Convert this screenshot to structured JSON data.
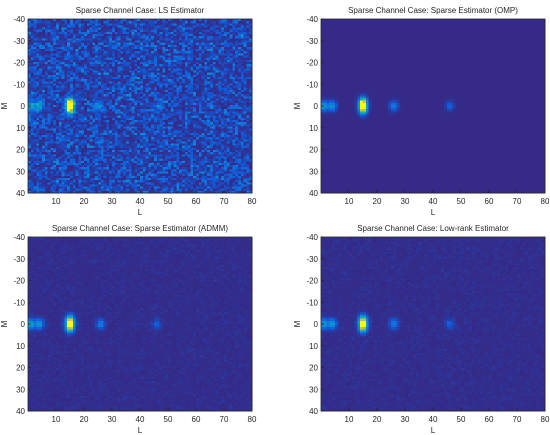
{
  "chart_data": [
    {
      "type": "heatmap",
      "title": "Sparse Channel Case: LS Estimator",
      "xlabel": "L",
      "ylabel": "M",
      "xlim": [
        0,
        80
      ],
      "ylim": [
        -40,
        40
      ],
      "y_direction": "reversed",
      "xticks": [
        "10",
        "20",
        "30",
        "40",
        "50",
        "60",
        "70",
        "80"
      ],
      "yticks": [
        "-40",
        "-30",
        "-20",
        "-10",
        "0",
        "10",
        "20",
        "30",
        "40"
      ],
      "background_noise": 0.18,
      "hot_spots": [
        {
          "l": 1,
          "m": 0,
          "value": 0.55
        },
        {
          "l": 4,
          "m": 0,
          "value": 0.5
        },
        {
          "l": 15,
          "m": 0,
          "value": 0.9
        },
        {
          "l": 15,
          "m": -2,
          "value": 0.8
        },
        {
          "l": 15,
          "m": 2,
          "value": 0.7
        },
        {
          "l": 25,
          "m": 0,
          "value": 0.4
        },
        {
          "l": 47,
          "m": 0,
          "value": 0.25
        }
      ]
    },
    {
      "type": "heatmap",
      "title": "Sparse Channel Case: Sparse Estimator (OMP)",
      "xlabel": "L",
      "ylabel": "M",
      "xlim": [
        0,
        80
      ],
      "ylim": [
        -40,
        40
      ],
      "y_direction": "reversed",
      "xticks": [
        "10",
        "20",
        "30",
        "40",
        "50",
        "60",
        "70",
        "80"
      ],
      "yticks": [
        "-40",
        "-30",
        "-20",
        "-10",
        "0",
        "10",
        "20",
        "30",
        "40"
      ],
      "background_noise": 0.0,
      "hot_spots": [
        {
          "l": 1,
          "m": 0,
          "value": 0.55
        },
        {
          "l": 4,
          "m": 0,
          "value": 0.5
        },
        {
          "l": 15,
          "m": 0,
          "value": 0.9
        },
        {
          "l": 15,
          "m": -2,
          "value": 0.8
        },
        {
          "l": 15,
          "m": 2,
          "value": 0.7
        },
        {
          "l": 26,
          "m": 0,
          "value": 0.35
        },
        {
          "l": 46,
          "m": 0,
          "value": 0.2
        }
      ]
    },
    {
      "type": "heatmap",
      "title": "Sparse Channel Case: Sparse Estimator (ADMM)",
      "xlabel": "L",
      "ylabel": "M",
      "xlim": [
        0,
        80
      ],
      "ylim": [
        -40,
        40
      ],
      "y_direction": "reversed",
      "xticks": [
        "10",
        "20",
        "30",
        "40",
        "50",
        "60",
        "70",
        "80"
      ],
      "yticks": [
        "-40",
        "-30",
        "-20",
        "-10",
        "0",
        "10",
        "20",
        "30",
        "40"
      ],
      "background_noise": 0.02,
      "hot_spots": [
        {
          "l": 1,
          "m": 0,
          "value": 0.55
        },
        {
          "l": 4,
          "m": 0,
          "value": 0.5
        },
        {
          "l": 15,
          "m": 0,
          "value": 0.9
        },
        {
          "l": 15,
          "m": -2,
          "value": 0.8
        },
        {
          "l": 15,
          "m": 2,
          "value": 0.7
        },
        {
          "l": 26,
          "m": 0,
          "value": 0.35
        },
        {
          "l": 46,
          "m": 0,
          "value": 0.2
        }
      ]
    },
    {
      "type": "heatmap",
      "title": "Sparse Channel Case: Low-rank Estimator",
      "xlabel": "L",
      "ylabel": "M",
      "xlim": [
        0,
        80
      ],
      "ylim": [
        -40,
        40
      ],
      "y_direction": "reversed",
      "xticks": [
        "10",
        "20",
        "30",
        "40",
        "50",
        "60",
        "70",
        "80"
      ],
      "yticks": [
        "-40",
        "-30",
        "-20",
        "-10",
        "0",
        "10",
        "20",
        "30",
        "40"
      ],
      "background_noise": 0.02,
      "hot_spots": [
        {
          "l": 1,
          "m": 0,
          "value": 0.55
        },
        {
          "l": 4,
          "m": 0,
          "value": 0.5
        },
        {
          "l": 15,
          "m": 0,
          "value": 0.9
        },
        {
          "l": 15,
          "m": -2,
          "value": 0.8
        },
        {
          "l": 15,
          "m": 2,
          "value": 0.7
        },
        {
          "l": 26,
          "m": 0,
          "value": 0.35
        },
        {
          "l": 46,
          "m": 0,
          "value": 0.2
        }
      ]
    }
  ],
  "colors": {
    "colormap": "parula",
    "low": "#352a87",
    "axis": "#262626"
  }
}
